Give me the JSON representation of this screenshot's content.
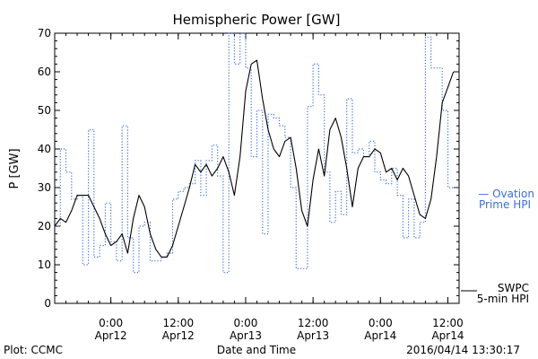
{
  "chart_data": {
    "type": "line",
    "title": "Hemispheric Power [GW]",
    "ylabel": "P [GW]",
    "xlabel": "Date and Time",
    "ylim": [
      0,
      70
    ],
    "yticks": [
      0,
      10,
      20,
      30,
      40,
      50,
      60,
      70
    ],
    "xlim": [
      "2016-04-11T14:00",
      "2016-04-14T14:00"
    ],
    "xticks": [
      {
        "x": "2016-04-12T00:00",
        "time": "0:00",
        "date": "Apr12"
      },
      {
        "x": "2016-04-12T12:00",
        "time": "12:00",
        "date": "Apr12"
      },
      {
        "x": "2016-04-13T00:00",
        "time": "0:00",
        "date": "Apr13"
      },
      {
        "x": "2016-04-13T12:00",
        "time": "12:00",
        "date": "Apr13"
      },
      {
        "x": "2016-04-14T00:00",
        "time": "0:00",
        "date": "Apr14"
      },
      {
        "x": "2016-04-14T12:00",
        "time": "12:00",
        "date": "Apr14"
      }
    ],
    "grid": false,
    "legend_position": "right",
    "series": [
      {
        "name": "SWPC 5-min HPI",
        "legend_lines": [
          "SWPC",
          "5-min HPI"
        ],
        "color": "#000000",
        "style": "solid",
        "points": [
          [
            "2016-04-11T14:00",
            20
          ],
          [
            "2016-04-11T15:00",
            22
          ],
          [
            "2016-04-11T16:00",
            21
          ],
          [
            "2016-04-11T17:00",
            24
          ],
          [
            "2016-04-11T18:00",
            28
          ],
          [
            "2016-04-11T19:00",
            28
          ],
          [
            "2016-04-11T20:00",
            28
          ],
          [
            "2016-04-11T21:00",
            25
          ],
          [
            "2016-04-11T22:00",
            22
          ],
          [
            "2016-04-11T23:00",
            18
          ],
          [
            "2016-04-12T00:00",
            15
          ],
          [
            "2016-04-12T01:00",
            16
          ],
          [
            "2016-04-12T02:00",
            18
          ],
          [
            "2016-04-12T03:00",
            13
          ],
          [
            "2016-04-12T04:00",
            22
          ],
          [
            "2016-04-12T05:00",
            28
          ],
          [
            "2016-04-12T06:00",
            25
          ],
          [
            "2016-04-12T07:00",
            18
          ],
          [
            "2016-04-12T08:00",
            14
          ],
          [
            "2016-04-12T09:00",
            12
          ],
          [
            "2016-04-12T10:00",
            12
          ],
          [
            "2016-04-12T11:00",
            15
          ],
          [
            "2016-04-12T12:00",
            20
          ],
          [
            "2016-04-12T13:00",
            25
          ],
          [
            "2016-04-12T14:00",
            30
          ],
          [
            "2016-04-12T15:00",
            36
          ],
          [
            "2016-04-12T16:00",
            34
          ],
          [
            "2016-04-12T17:00",
            36
          ],
          [
            "2016-04-12T18:00",
            33
          ],
          [
            "2016-04-12T19:00",
            35
          ],
          [
            "2016-04-12T20:00",
            38
          ],
          [
            "2016-04-12T21:00",
            34
          ],
          [
            "2016-04-12T22:00",
            28
          ],
          [
            "2016-04-12T23:00",
            38
          ],
          [
            "2016-04-13T00:00",
            55
          ],
          [
            "2016-04-13T01:00",
            62
          ],
          [
            "2016-04-13T02:00",
            63
          ],
          [
            "2016-04-13T03:00",
            53
          ],
          [
            "2016-04-13T04:00",
            45
          ],
          [
            "2016-04-13T05:00",
            40
          ],
          [
            "2016-04-13T06:00",
            38
          ],
          [
            "2016-04-13T07:00",
            42
          ],
          [
            "2016-04-13T08:00",
            43
          ],
          [
            "2016-04-13T09:00",
            35
          ],
          [
            "2016-04-13T10:00",
            24
          ],
          [
            "2016-04-13T11:00",
            20
          ],
          [
            "2016-04-13T12:00",
            32
          ],
          [
            "2016-04-13T13:00",
            40
          ],
          [
            "2016-04-13T14:00",
            33
          ],
          [
            "2016-04-13T15:00",
            45
          ],
          [
            "2016-04-13T16:00",
            48
          ],
          [
            "2016-04-13T17:00",
            43
          ],
          [
            "2016-04-13T18:00",
            35
          ],
          [
            "2016-04-13T19:00",
            25
          ],
          [
            "2016-04-13T20:00",
            35
          ],
          [
            "2016-04-13T21:00",
            38
          ],
          [
            "2016-04-13T22:00",
            38
          ],
          [
            "2016-04-13T23:00",
            40
          ],
          [
            "2016-04-14T00:00",
            39
          ],
          [
            "2016-04-14T01:00",
            34
          ],
          [
            "2016-04-14T02:00",
            35
          ],
          [
            "2016-04-14T03:00",
            32
          ],
          [
            "2016-04-14T04:00",
            35
          ],
          [
            "2016-04-14T05:00",
            33
          ],
          [
            "2016-04-14T06:00",
            28
          ],
          [
            "2016-04-14T07:00",
            23
          ],
          [
            "2016-04-14T08:00",
            22
          ],
          [
            "2016-04-14T09:00",
            27
          ],
          [
            "2016-04-14T10:00",
            38
          ],
          [
            "2016-04-14T11:00",
            52
          ],
          [
            "2016-04-14T12:00",
            56
          ],
          [
            "2016-04-14T13:00",
            60
          ]
        ]
      },
      {
        "name": "Ovation Prime HPI",
        "legend_lines": [
          "— Ovation",
          "Prime HPI"
        ],
        "color": "#3a6fd8",
        "style": "dotted",
        "points": [
          [
            "2016-04-11T14:00",
            20
          ],
          [
            "2016-04-11T15:00",
            40
          ],
          [
            "2016-04-11T16:00",
            34
          ],
          [
            "2016-04-11T17:00",
            27
          ],
          [
            "2016-04-11T18:00",
            28
          ],
          [
            "2016-04-11T19:00",
            10
          ],
          [
            "2016-04-11T20:00",
            45
          ],
          [
            "2016-04-11T21:00",
            12
          ],
          [
            "2016-04-11T22:00",
            15
          ],
          [
            "2016-04-11T23:00",
            26
          ],
          [
            "2016-04-12T00:00",
            16
          ],
          [
            "2016-04-12T01:00",
            11
          ],
          [
            "2016-04-12T02:00",
            46
          ],
          [
            "2016-04-12T03:00",
            17
          ],
          [
            "2016-04-12T04:00",
            8
          ],
          [
            "2016-04-12T05:00",
            20
          ],
          [
            "2016-04-12T06:00",
            21
          ],
          [
            "2016-04-12T07:00",
            11
          ],
          [
            "2016-04-12T08:00",
            11
          ],
          [
            "2016-04-12T09:00",
            12
          ],
          [
            "2016-04-12T10:00",
            13
          ],
          [
            "2016-04-12T11:00",
            27
          ],
          [
            "2016-04-12T12:00",
            29
          ],
          [
            "2016-04-12T13:00",
            30
          ],
          [
            "2016-04-12T14:00",
            31
          ],
          [
            "2016-04-12T15:00",
            37
          ],
          [
            "2016-04-12T16:00",
            28
          ],
          [
            "2016-04-12T17:00",
            37
          ],
          [
            "2016-04-12T18:00",
            41
          ],
          [
            "2016-04-12T19:00",
            33
          ],
          [
            "2016-04-12T20:00",
            8
          ],
          [
            "2016-04-12T21:00",
            70
          ],
          [
            "2016-04-12T22:00",
            62
          ],
          [
            "2016-04-12T23:00",
            70
          ],
          [
            "2016-04-13T00:00",
            61
          ],
          [
            "2016-04-13T01:00",
            38
          ],
          [
            "2016-04-13T02:00",
            50
          ],
          [
            "2016-04-13T03:00",
            18
          ],
          [
            "2016-04-13T04:00",
            49
          ],
          [
            "2016-04-13T05:00",
            48
          ],
          [
            "2016-04-13T06:00",
            46
          ],
          [
            "2016-04-13T07:00",
            43
          ],
          [
            "2016-04-13T08:00",
            30
          ],
          [
            "2016-04-13T09:00",
            9
          ],
          [
            "2016-04-13T10:00",
            9
          ],
          [
            "2016-04-13T11:00",
            51
          ],
          [
            "2016-04-13T12:00",
            62
          ],
          [
            "2016-04-13T13:00",
            54
          ],
          [
            "2016-04-13T14:00",
            34
          ],
          [
            "2016-04-13T15:00",
            21
          ],
          [
            "2016-04-13T16:00",
            29
          ],
          [
            "2016-04-13T17:00",
            23
          ],
          [
            "2016-04-13T18:00",
            53
          ],
          [
            "2016-04-13T19:00",
            39
          ],
          [
            "2016-04-13T20:00",
            40
          ],
          [
            "2016-04-13T21:00",
            38
          ],
          [
            "2016-04-13T22:00",
            42
          ],
          [
            "2016-04-13T23:00",
            34
          ],
          [
            "2016-04-14T00:00",
            32
          ],
          [
            "2016-04-14T01:00",
            31
          ],
          [
            "2016-04-14T02:00",
            35
          ],
          [
            "2016-04-14T03:00",
            28
          ],
          [
            "2016-04-14T04:00",
            17
          ],
          [
            "2016-04-14T05:00",
            27
          ],
          [
            "2016-04-14T06:00",
            17
          ],
          [
            "2016-04-14T07:00",
            21
          ],
          [
            "2016-04-14T08:00",
            69
          ],
          [
            "2016-04-14T09:00",
            61
          ],
          [
            "2016-04-14T10:00",
            61
          ],
          [
            "2016-04-14T11:00",
            50
          ],
          [
            "2016-04-14T12:00",
            30
          ],
          [
            "2016-04-14T13:00",
            30
          ]
        ]
      }
    ]
  },
  "footer": {
    "plot_label": "Plot: CCMC",
    "timestamp": "2016/04/14 13:30:17"
  }
}
